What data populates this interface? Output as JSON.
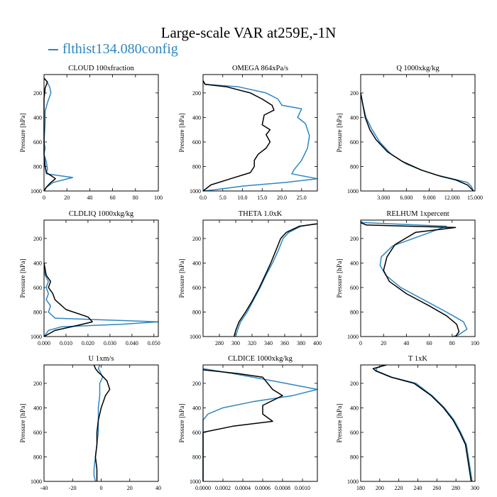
{
  "figure": {
    "title": "Large-scale VAR at259E,-1N",
    "legend_label": "flthist134.080config",
    "colors": {
      "model": "#2e86c1",
      "obs": "#000000"
    }
  },
  "chart_data": [
    {
      "type": "line",
      "title": "CLOUD  100xfraction",
      "ylabel": "Pressure [hPa]",
      "xlim": [
        0,
        100
      ],
      "ylim": [
        1000,
        50
      ],
      "xticks": [
        0,
        20,
        40,
        60,
        80,
        100
      ],
      "xtick_labels": [
        "0",
        "20",
        "40",
        "60",
        "80",
        "100"
      ],
      "yticks": [
        200,
        400,
        600,
        800,
        1000
      ],
      "ytick_labels": [
        "200",
        "400",
        "600",
        "800",
        "1000"
      ],
      "series": [
        {
          "color": "#2e86c1",
          "x": [
            0,
            2,
            5,
            6,
            3,
            1,
            1,
            0,
            1,
            0,
            2,
            3,
            2,
            25,
            8,
            2,
            0
          ],
          "y": [
            80,
            100,
            150,
            200,
            280,
            350,
            450,
            600,
            650,
            700,
            760,
            820,
            860,
            890,
            930,
            970,
            1000
          ]
        },
        {
          "color": "#000000",
          "x": [
            0,
            3,
            1,
            0,
            0,
            0,
            0,
            0,
            0,
            1,
            2,
            7,
            10,
            6,
            2,
            0
          ],
          "y": [
            80,
            110,
            160,
            250,
            300,
            400,
            500,
            600,
            700,
            800,
            850,
            880,
            900,
            930,
            970,
            1000
          ]
        }
      ]
    },
    {
      "type": "line",
      "title": "OMEGA  864xPa/s",
      "ylabel": "Pressure [hPa]",
      "xlim": [
        0,
        29
      ],
      "ylim": [
        1000,
        50
      ],
      "xticks": [
        0,
        5,
        10,
        15,
        20,
        25
      ],
      "xtick_labels": [
        "0.0",
        "5.0",
        "10.0",
        "15.0",
        "20.0",
        "25.0"
      ],
      "yticks": [
        200,
        400,
        600,
        800,
        1000
      ],
      "ytick_labels": [
        "200",
        "400",
        "600",
        "800",
        "1000"
      ],
      "series": [
        {
          "color": "#2e86c1",
          "x": [
            0,
            0.5,
            9,
            16,
            19,
            20,
            25,
            24,
            26,
            27,
            26.5,
            25,
            23,
            22.5,
            29,
            21,
            10,
            3,
            0
          ],
          "y": [
            100,
            130,
            150,
            200,
            250,
            300,
            330,
            400,
            450,
            550,
            650,
            750,
            830,
            860,
            900,
            930,
            960,
            990,
            1000
          ]
        },
        {
          "color": "#000000",
          "x": [
            0,
            0.5,
            6,
            12,
            15,
            17.5,
            18,
            15.5,
            15,
            17,
            16,
            17,
            16,
            14,
            13,
            13,
            12,
            7,
            2,
            0
          ],
          "y": [
            100,
            130,
            150,
            200,
            250,
            300,
            340,
            380,
            460,
            500,
            540,
            600,
            650,
            700,
            750,
            800,
            850,
            900,
            950,
            1000
          ]
        }
      ]
    },
    {
      "type": "line",
      "title": "Q  1000xkg/kg",
      "ylabel": "Pressure [hPa]",
      "xlim": [
        0,
        15000
      ],
      "ylim": [
        1000,
        50
      ],
      "xticks": [
        3000,
        6000,
        9000,
        12000,
        15000
      ],
      "xtick_labels": [
        "3.000",
        "6.000",
        "9.000",
        "12.000",
        "15.000"
      ],
      "yticks": [
        200,
        400,
        600,
        800,
        1000
      ],
      "ytick_labels": [
        "200",
        "400",
        "600",
        "800",
        "1000"
      ],
      "series": [
        {
          "color": "#2e86c1",
          "x": [
            0,
            300,
            700,
            1500,
            2500,
            4000,
            6000,
            8000,
            10000,
            12000,
            14000,
            14500,
            14800
          ],
          "y": [
            200,
            300,
            400,
            500,
            600,
            700,
            780,
            830,
            870,
            900,
            930,
            960,
            1000
          ]
        },
        {
          "color": "#000000",
          "x": [
            0,
            300,
            600,
            1200,
            2000,
            3500,
            5500,
            8000,
            10500,
            12500,
            14000,
            14800
          ],
          "y": [
            200,
            300,
            400,
            500,
            580,
            680,
            760,
            830,
            880,
            910,
            950,
            1000
          ]
        }
      ]
    },
    {
      "type": "line",
      "title": "CLDLIQ  1000xkg/kg",
      "ylabel": "Pressure [hPa]",
      "xlim": [
        0,
        0.052
      ],
      "ylim": [
        1000,
        50
      ],
      "xticks": [
        0,
        0.01,
        0.02,
        0.03,
        0.04,
        0.05
      ],
      "xtick_labels": [
        "0.000",
        "0.010",
        "0.020",
        "0.030",
        "0.040",
        "0.050"
      ],
      "yticks": [
        200,
        400,
        600,
        800,
        1000
      ],
      "ytick_labels": [
        "200",
        "400",
        "600",
        "800",
        "1000"
      ],
      "series": [
        {
          "color": "#2e86c1",
          "x": [
            0,
            0.0005,
            0.002,
            0.001,
            0.002,
            0.001,
            0.003,
            0.002,
            0.005,
            0.052,
            0.035,
            0.008,
            0.002,
            0
          ],
          "y": [
            400,
            500,
            550,
            600,
            650,
            700,
            750,
            800,
            850,
            880,
            900,
            920,
            950,
            1000
          ]
        },
        {
          "color": "#000000",
          "x": [
            0,
            0.001,
            0.003,
            0.002,
            0.004,
            0.005,
            0.01,
            0.02,
            0.022,
            0.015,
            0.005,
            0
          ],
          "y": [
            400,
            500,
            550,
            600,
            650,
            700,
            780,
            840,
            880,
            910,
            950,
            1000
          ]
        }
      ]
    },
    {
      "type": "line",
      "title": "THETA  1.0xK",
      "ylabel": "Pressure [hPa]",
      "xlim": [
        260,
        400
      ],
      "ylim": [
        1000,
        50
      ],
      "xticks": [
        280,
        300,
        320,
        340,
        360,
        380,
        400
      ],
      "xtick_labels": [
        "280",
        "300",
        "320",
        "340",
        "360",
        "380",
        "400"
      ],
      "yticks": [
        200,
        400,
        600,
        800,
        1000
      ],
      "ytick_labels": [
        "200",
        "400",
        "600",
        "800",
        "1000"
      ],
      "series": [
        {
          "color": "#2e86c1",
          "x": [
            398,
            380,
            365,
            358,
            352,
            345,
            337,
            330,
            322,
            314,
            306,
            302,
            300
          ],
          "y": [
            80,
            100,
            150,
            200,
            300,
            400,
            500,
            600,
            700,
            800,
            880,
            950,
            1000
          ]
        },
        {
          "color": "#000000",
          "x": [
            400,
            378,
            362,
            355,
            349,
            343,
            336,
            329,
            321,
            312,
            304,
            300,
            298
          ],
          "y": [
            80,
            100,
            150,
            200,
            300,
            400,
            500,
            600,
            700,
            800,
            880,
            950,
            1000
          ]
        }
      ]
    },
    {
      "type": "line",
      "title": "RELHUM  1xpercent",
      "ylabel": "Pressure [hPa]",
      "xlim": [
        0,
        100
      ],
      "ylim": [
        1000,
        50
      ],
      "xticks": [
        0,
        20,
        40,
        60,
        80,
        100
      ],
      "xtick_labels": [
        "0",
        "20",
        "40",
        "60",
        "80",
        "100"
      ],
      "yticks": [
        200,
        400,
        600,
        800,
        1000
      ],
      "ytick_labels": [
        "200",
        "400",
        "600",
        "800",
        "1000"
      ],
      "series": [
        {
          "color": "#2e86c1",
          "x": [
            0,
            2,
            75,
            55,
            28,
            18,
            17,
            22,
            35,
            55,
            75,
            90,
            93,
            85,
            80
          ],
          "y": [
            60,
            70,
            100,
            170,
            260,
            350,
            420,
            500,
            600,
            700,
            800,
            880,
            940,
            990,
            1000
          ]
        },
        {
          "color": "#000000",
          "x": [
            0,
            5,
            83,
            48,
            30,
            23,
            20,
            25,
            40,
            60,
            75,
            84,
            86,
            83
          ],
          "y": [
            70,
            90,
            110,
            150,
            250,
            350,
            460,
            550,
            650,
            750,
            830,
            900,
            960,
            1000
          ]
        }
      ]
    },
    {
      "type": "line",
      "title": "U  1xm/s",
      "ylabel": "Pressure [hPa]",
      "xlim": [
        -40,
        40
      ],
      "ylim": [
        1000,
        50
      ],
      "xticks": [
        -40,
        -20,
        0,
        20,
        40
      ],
      "xtick_labels": [
        "-40",
        "-20",
        "0",
        "20",
        "40"
      ],
      "yticks": [
        200,
        400,
        600,
        800,
        1000
      ],
      "ytick_labels": [
        "200",
        "400",
        "600",
        "800",
        "1000"
      ],
      "series": [
        {
          "color": "#2e86c1",
          "x": [
            -1,
            -2,
            -1,
            1,
            -1,
            -1,
            -2,
            -2,
            -2,
            -3,
            -4,
            -5,
            -5,
            -4
          ],
          "y": [
            50,
            80,
            100,
            150,
            200,
            300,
            400,
            500,
            600,
            700,
            800,
            900,
            950,
            1000
          ]
        },
        {
          "color": "#000000",
          "x": [
            -5,
            -4,
            -2,
            0,
            4,
            6,
            3,
            0,
            -2,
            -3,
            -3,
            -4,
            -3,
            -3
          ],
          "y": [
            50,
            80,
            110,
            130,
            180,
            250,
            300,
            400,
            500,
            600,
            700,
            800,
            900,
            1000
          ]
        }
      ]
    },
    {
      "type": "line",
      "title": "CLDICE  1000xkg/kg",
      "ylabel": "Pressure [hPa]",
      "xlim": [
        0,
        0.00115
      ],
      "ylim": [
        1000,
        50
      ],
      "xticks": [
        0,
        0.0002,
        0.0004,
        0.0006,
        0.0008,
        0.001
      ],
      "xtick_labels": [
        "0.0000",
        "0.0002",
        "0.0004",
        "0.0006",
        "0.0008",
        "0.0010"
      ],
      "yticks": [
        200,
        400,
        600,
        800,
        1000
      ],
      "ytick_labels": [
        "200",
        "400",
        "600",
        "800",
        "1000"
      ],
      "series": [
        {
          "color": "#2e86c1",
          "x": [
            0,
            0.0003,
            0.0007,
            0.00115,
            0.0009,
            0.0005,
            0.0002,
            5e-05,
            0,
            0,
            0
          ],
          "y": [
            80,
            120,
            180,
            250,
            300,
            350,
            400,
            450,
            500,
            700,
            1000
          ]
        },
        {
          "color": "#000000",
          "x": [
            0,
            0.00035,
            0.0006,
            0.00065,
            0.0007,
            0.0008,
            0.0006,
            0.0006,
            0.0007,
            0.0003,
            0,
            0
          ],
          "y": [
            90,
            120,
            150,
            200,
            250,
            300,
            380,
            450,
            510,
            550,
            600,
            1000
          ]
        }
      ]
    },
    {
      "type": "line",
      "title": "T  1xK",
      "ylabel": "Pressure [hPa]",
      "xlim": [
        180,
        300
      ],
      "ylim": [
        1000,
        50
      ],
      "xticks": [
        180,
        200,
        220,
        240,
        260,
        280,
        300
      ],
      "xtick_labels": [
        "180",
        "200",
        "220",
        "240",
        "260",
        "280",
        "300"
      ],
      "yticks": [
        200,
        400,
        600,
        800,
        1000
      ],
      "ytick_labels": [
        "200",
        "400",
        "600",
        "800",
        "1000"
      ],
      "series": [
        {
          "color": "#2e86c1",
          "x": [
            204,
            196,
            197,
            213,
            238,
            255,
            268,
            278,
            285,
            291,
            293,
            297
          ],
          "y": [
            50,
            80,
            100,
            150,
            200,
            300,
            400,
            500,
            600,
            700,
            800,
            1000
          ]
        },
        {
          "color": "#000000",
          "x": [
            207,
            193,
            196,
            212,
            236,
            254,
            267,
            277,
            284,
            290,
            292,
            296
          ],
          "y": [
            50,
            80,
            100,
            150,
            200,
            300,
            400,
            500,
            600,
            700,
            800,
            1000
          ]
        }
      ]
    }
  ]
}
